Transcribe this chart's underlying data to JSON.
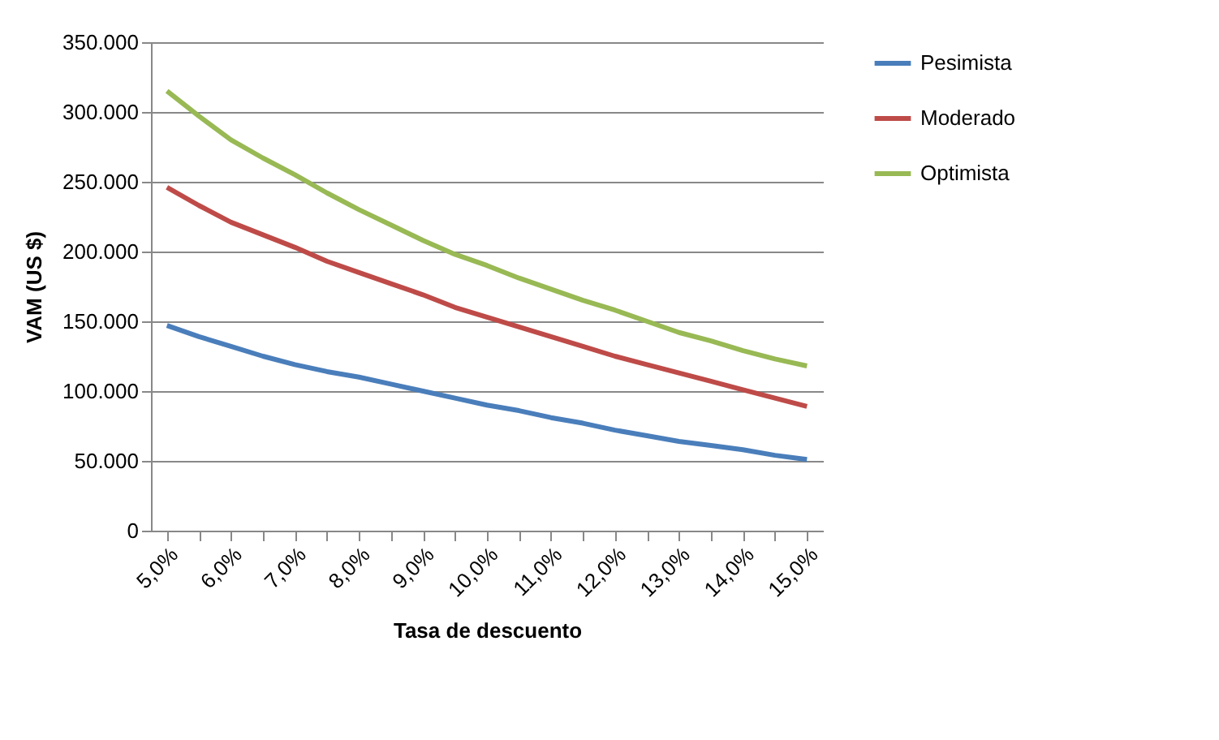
{
  "chart_data": {
    "type": "line",
    "xlabel": "Tasa de descuento",
    "ylabel": "VAM (US $)",
    "categories": [
      "5,0%",
      null,
      "6,0%",
      null,
      "7,0%",
      null,
      "8,0%",
      null,
      "9,0%",
      null,
      "10,0%",
      null,
      "11,0%",
      null,
      "12,0%",
      null,
      "13,0%",
      null,
      "14,0%",
      null,
      "15,0%"
    ],
    "series": [
      {
        "name": "Pesimista",
        "color": "#4a7ebb",
        "values": [
          147000,
          139000,
          132000,
          125000,
          119000,
          114000,
          110000,
          105000,
          100000,
          95000,
          90000,
          86000,
          81000,
          77000,
          72000,
          68000,
          64000,
          61000,
          58000,
          54000,
          51000
        ]
      },
      {
        "name": "Moderado",
        "color": "#be4b48",
        "values": [
          246000,
          233000,
          221000,
          212000,
          203000,
          193000,
          185000,
          177000,
          169000,
          160000,
          153000,
          146000,
          139000,
          132000,
          125000,
          119000,
          113000,
          107000,
          101000,
          95000,
          89000
        ]
      },
      {
        "name": "Optimista",
        "color": "#98b954",
        "values": [
          315000,
          297000,
          280000,
          267000,
          255000,
          242000,
          230000,
          219000,
          208000,
          198000,
          190000,
          181000,
          173000,
          165000,
          158000,
          150000,
          142000,
          136000,
          129000,
          123000,
          118000
        ]
      }
    ],
    "ylim": [
      0,
      350000
    ],
    "yticks": [
      0,
      {
        "value": 50000,
        "label": "50.000"
      },
      {
        "value": 100000,
        "label": "100.000"
      },
      {
        "value": 150000,
        "label": "150.000"
      },
      {
        "value": 200000,
        "label": "200.000"
      },
      {
        "value": 250000,
        "label": "250.000"
      },
      {
        "value": 300000,
        "label": "300.000"
      },
      {
        "value": 350000,
        "label": "350.000"
      }
    ],
    "grid": "y",
    "legend": "right",
    "marker": "none",
    "line_style": "solid"
  }
}
